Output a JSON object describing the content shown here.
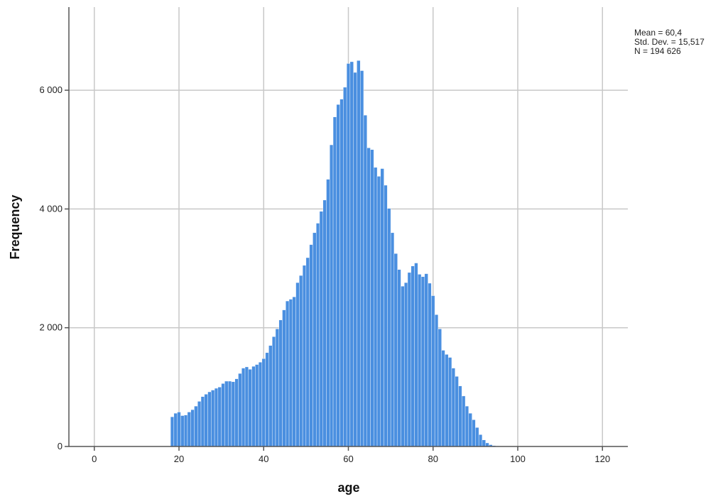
{
  "chart_data": {
    "type": "bar",
    "xlabel": "age",
    "ylabel": "Frequency",
    "xlim": [
      -6,
      126
    ],
    "ylim": [
      0,
      7400
    ],
    "x_ticks": [
      0,
      20,
      40,
      60,
      80,
      100,
      120
    ],
    "x_tick_labels": [
      "0",
      "20",
      "40",
      "60",
      "80",
      "100",
      "120"
    ],
    "y_ticks": [
      0,
      2000,
      4000,
      6000
    ],
    "y_tick_labels": [
      "0",
      "2 000",
      "4 000",
      "6 000"
    ],
    "grid": true,
    "stats": {
      "mean": "Mean = 60,4",
      "std_dev": "Std. Dev. = 15,517",
      "n": "N = 194 626"
    },
    "bin_width": 0.8,
    "bins_start": [
      18.0,
      18.8,
      19.6,
      20.4,
      21.2,
      22.0,
      22.8,
      23.6,
      24.4,
      25.2,
      26.0,
      26.8,
      27.6,
      28.4,
      29.2,
      30.0,
      30.8,
      31.6,
      32.4,
      33.2,
      34.0,
      34.8,
      35.6,
      36.4,
      37.2,
      38.0,
      38.8,
      39.6,
      40.4,
      41.2,
      42.0,
      42.8,
      43.6,
      44.4,
      45.2,
      46.0,
      46.8,
      47.6,
      48.4,
      49.2,
      50.0,
      50.8,
      51.6,
      52.4,
      53.2,
      54.0,
      54.8,
      55.6,
      56.4,
      57.2,
      58.0,
      58.8,
      59.6,
      60.4,
      61.2,
      62.0,
      62.8,
      63.6,
      64.4,
      65.2,
      66.0,
      66.8,
      67.6,
      68.4,
      69.2,
      70.0,
      70.8,
      71.6,
      72.4,
      73.2,
      74.0,
      74.8,
      75.6,
      76.4,
      77.2,
      78.0,
      78.8,
      79.6,
      80.4,
      81.2,
      82.0,
      82.8,
      83.6,
      84.4,
      85.2,
      86.0,
      86.8,
      87.6,
      88.4,
      89.2,
      90.0,
      90.8,
      91.6,
      92.4,
      93.2,
      94.0,
      94.8,
      95.6,
      96.4,
      97.2,
      98.0,
      98.8,
      99.6,
      100.4,
      101.2,
      102.0,
      102.8,
      103.6,
      104.4,
      105.2
    ],
    "values": [
      500,
      560,
      580,
      520,
      530,
      580,
      620,
      680,
      760,
      840,
      880,
      920,
      950,
      980,
      1000,
      1060,
      1100,
      1100,
      1090,
      1140,
      1230,
      1320,
      1340,
      1300,
      1350,
      1380,
      1420,
      1480,
      1580,
      1700,
      1850,
      1980,
      2130,
      2300,
      2450,
      2480,
      2520,
      2760,
      2880,
      3050,
      3180,
      3400,
      3600,
      3760,
      3960,
      4150,
      4500,
      5080,
      5550,
      5760,
      5850,
      6050,
      6450,
      6480,
      6300,
      6500,
      6330,
      5580,
      5030,
      5000,
      4700,
      4550,
      4680,
      4400,
      4010,
      3600,
      3250,
      2980,
      2700,
      2760,
      2930,
      3040,
      3090,
      2900,
      2860,
      2910,
      2750,
      2540,
      2220,
      1980,
      1620,
      1550,
      1500,
      1320,
      1180,
      1020,
      850,
      680,
      560,
      450,
      320,
      200,
      110,
      60,
      30,
      15,
      8,
      5,
      3,
      2,
      1,
      1,
      1,
      1,
      0,
      0,
      0,
      0,
      0,
      0
    ]
  }
}
